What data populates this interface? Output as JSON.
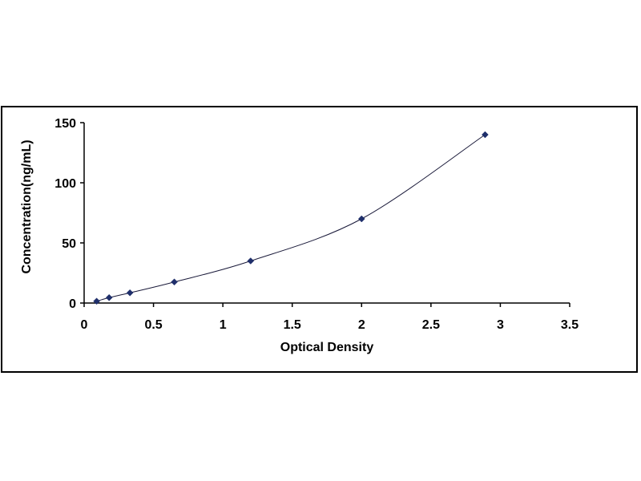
{
  "chart_data": {
    "type": "scatter",
    "title": "",
    "xlabel": "Optical Density",
    "ylabel": "Concentration(ng/mL)",
    "xlim": [
      0,
      3.5
    ],
    "ylim": [
      0,
      150
    ],
    "x_ticks": [
      "0",
      "0.5",
      "1",
      "1.5",
      "2",
      "2.5",
      "3",
      "3.5"
    ],
    "y_ticks": [
      "0",
      "50",
      "100",
      "150"
    ],
    "grid": false,
    "legend": "none",
    "series": [
      {
        "x": [
          0.09,
          0.18,
          0.33,
          0.65,
          1.2,
          2.0,
          2.89
        ],
        "y": [
          1.5,
          4.5,
          8.5,
          17.5,
          35,
          70,
          140
        ],
        "marker": "diamond",
        "fitted_curve": true
      }
    ],
    "colors": {
      "marker": "#1f2f6b",
      "curve": "#1a1a3a",
      "axis": "#000000"
    }
  }
}
